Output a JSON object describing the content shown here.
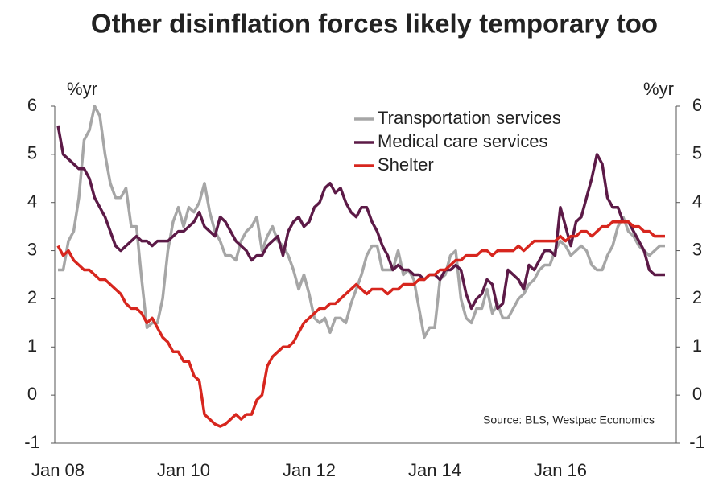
{
  "chart_data": {
    "type": "line",
    "title": "Other disinflation forces likely temporary too",
    "ylabel": "%yr",
    "y2label": "%yr",
    "annotation": "Source: BLS, Westpac Economics",
    "categories": [
      "Jan 08",
      null,
      null,
      null,
      null,
      null,
      null,
      null,
      null,
      null,
      null,
      null,
      null,
      null,
      null,
      null,
      null,
      null,
      null,
      null,
      null,
      null,
      null,
      null,
      "Jan 10",
      null,
      null,
      null,
      null,
      null,
      null,
      null,
      null,
      null,
      null,
      null,
      null,
      null,
      null,
      null,
      null,
      null,
      null,
      null,
      null,
      null,
      null,
      null,
      "Jan 12",
      null,
      null,
      null,
      null,
      null,
      null,
      null,
      null,
      null,
      null,
      null,
      null,
      null,
      null,
      null,
      null,
      null,
      null,
      null,
      null,
      null,
      null,
      null,
      "Jan 14",
      null,
      null,
      null,
      null,
      null,
      null,
      null,
      null,
      null,
      null,
      null,
      null,
      null,
      null,
      null,
      null,
      null,
      null,
      null,
      null,
      null,
      null,
      null,
      "Jan 16",
      null,
      null,
      null,
      null,
      null,
      null,
      null,
      null,
      null,
      null,
      null,
      null,
      null,
      null,
      null,
      null,
      null,
      null,
      null,
      null
    ],
    "series": [
      {
        "name": "Transportation services",
        "color": "#a6a6a6",
        "values": [
          2.6,
          2.6,
          3.2,
          3.4,
          4.1,
          5.3,
          5.5,
          6.0,
          5.8,
          5.0,
          4.4,
          4.1,
          4.1,
          4.3,
          3.5,
          3.5,
          2.4,
          1.4,
          1.5,
          1.5,
          2.0,
          3.0,
          3.6,
          3.9,
          3.5,
          3.9,
          3.8,
          4.0,
          4.4,
          3.8,
          3.4,
          3.2,
          2.9,
          2.9,
          2.8,
          3.2,
          3.4,
          3.5,
          3.7,
          3.0,
          3.3,
          3.5,
          3.2,
          3.1,
          2.9,
          2.6,
          2.2,
          2.5,
          2.1,
          1.6,
          1.5,
          1.6,
          1.3,
          1.6,
          1.6,
          1.5,
          1.9,
          2.2,
          2.5,
          2.9,
          3.1,
          3.1,
          2.6,
          2.6,
          2.6,
          3.0,
          2.5,
          2.6,
          2.4,
          1.8,
          1.2,
          1.4,
          1.4,
          2.4,
          2.5,
          2.9,
          3.0,
          2.0,
          1.6,
          1.5,
          1.8,
          1.8,
          2.2,
          1.7,
          1.9,
          1.6,
          1.6,
          1.8,
          2.0,
          2.1,
          2.3,
          2.4,
          2.6,
          2.7,
          2.7,
          3.0,
          3.2,
          3.1,
          2.9,
          3.0,
          3.1,
          3.0,
          2.7,
          2.6,
          2.6,
          2.9,
          3.1,
          3.5,
          3.7,
          3.4,
          3.3,
          3.1,
          3.0,
          2.9,
          3.0,
          3.1,
          3.1
        ]
      },
      {
        "name": "Medical care services",
        "color": "#5c1a47",
        "values": [
          5.6,
          5.0,
          4.9,
          4.8,
          4.7,
          4.7,
          4.5,
          4.1,
          3.9,
          3.7,
          3.4,
          3.1,
          3.0,
          3.1,
          3.2,
          3.3,
          3.2,
          3.2,
          3.1,
          3.2,
          3.2,
          3.2,
          3.3,
          3.4,
          3.4,
          3.5,
          3.6,
          3.8,
          3.5,
          3.4,
          3.3,
          3.7,
          3.6,
          3.4,
          3.2,
          3.1,
          3.0,
          2.8,
          2.9,
          2.9,
          3.1,
          3.2,
          3.3,
          2.9,
          3.4,
          3.6,
          3.7,
          3.5,
          3.6,
          3.9,
          4.0,
          4.3,
          4.4,
          4.2,
          4.3,
          4.0,
          3.8,
          3.7,
          3.9,
          3.9,
          3.6,
          3.4,
          3.1,
          2.9,
          2.6,
          2.7,
          2.6,
          2.6,
          2.5,
          2.5,
          2.4,
          2.5,
          2.5,
          2.4,
          2.6,
          2.6,
          2.7,
          2.6,
          2.1,
          1.8,
          2.0,
          2.1,
          2.4,
          2.3,
          1.8,
          1.9,
          2.6,
          2.5,
          2.4,
          2.2,
          2.7,
          2.6,
          2.8,
          3.0,
          3.0,
          2.9,
          3.9,
          3.5,
          3.1,
          3.6,
          3.7,
          4.1,
          4.5,
          5.0,
          4.8,
          4.1,
          3.9,
          3.9,
          3.6,
          3.6,
          3.4,
          3.2,
          3.0,
          2.6,
          2.5,
          2.5,
          2.5
        ]
      },
      {
        "name": "Shelter",
        "color": "#d7261e",
        "values": [
          3.1,
          2.9,
          3.0,
          2.8,
          2.7,
          2.6,
          2.6,
          2.5,
          2.4,
          2.4,
          2.3,
          2.2,
          2.1,
          1.9,
          1.8,
          1.8,
          1.7,
          1.5,
          1.6,
          1.4,
          1.2,
          1.1,
          0.9,
          0.9,
          0.7,
          0.7,
          0.4,
          0.3,
          -0.4,
          -0.5,
          -0.6,
          -0.65,
          -0.6,
          -0.5,
          -0.4,
          -0.5,
          -0.4,
          -0.4,
          -0.1,
          0.0,
          0.6,
          0.8,
          0.9,
          1.0,
          1.0,
          1.1,
          1.3,
          1.5,
          1.6,
          1.7,
          1.8,
          1.8,
          1.9,
          1.9,
          2.0,
          2.1,
          2.2,
          2.3,
          2.2,
          2.1,
          2.2,
          2.2,
          2.2,
          2.1,
          2.2,
          2.2,
          2.3,
          2.3,
          2.3,
          2.4,
          2.4,
          2.5,
          2.5,
          2.6,
          2.6,
          2.7,
          2.8,
          2.8,
          2.9,
          2.9,
          2.9,
          3.0,
          3.0,
          2.9,
          3.0,
          3.0,
          3.0,
          3.0,
          3.1,
          3.0,
          3.1,
          3.2,
          3.2,
          3.2,
          3.2,
          3.2,
          3.3,
          3.2,
          3.3,
          3.3,
          3.4,
          3.4,
          3.3,
          3.4,
          3.5,
          3.5,
          3.6,
          3.6,
          3.6,
          3.6,
          3.5,
          3.5,
          3.4,
          3.4,
          3.3,
          3.3,
          3.3
        ]
      }
    ],
    "ylim": [
      -1,
      6
    ],
    "yticks": [
      -1,
      0,
      1,
      2,
      3,
      4,
      5,
      6
    ],
    "y2lim": [
      -1,
      6
    ],
    "y2ticks": [
      -1,
      0,
      1,
      2,
      3,
      4,
      5,
      6
    ],
    "grid": false
  }
}
